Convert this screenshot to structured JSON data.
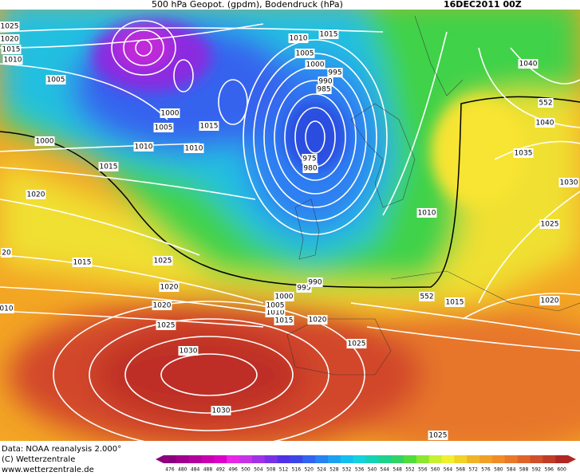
{
  "header": {
    "title": "500 hPa Geopot. (gpdm), Bodendruck (hPa)",
    "date": "16DEC2011 00Z"
  },
  "isobar_labels": [
    "1025",
    "1020",
    "1015",
    "1010",
    "1005",
    "1000",
    "1015",
    "1020",
    "20",
    "1015",
    "1025",
    "1020",
    "1020",
    "010",
    "1025",
    "1030",
    "1030",
    "1000",
    "1005",
    "1010",
    "1010",
    "1015",
    "1010",
    "1015",
    "1005",
    "1000",
    "995",
    "990",
    "985",
    "975",
    "980",
    "1010",
    "1040",
    "552",
    "1040",
    "1035",
    "1030",
    "1025",
    "1020",
    "1015",
    "552",
    "1025",
    "1020",
    "1015",
    "1010",
    "1005",
    "1000",
    "995",
    "990",
    "1025"
  ],
  "footer": {
    "source": "Data: NOAA reanalysis 2.000°",
    "copyright": "(C) Wetterzentrale",
    "url": "www.wetterzentrale.de"
  },
  "colorbar": {
    "labels": [
      "476",
      "480",
      "484",
      "488",
      "492",
      "496",
      "500",
      "504",
      "508",
      "512",
      "516",
      "520",
      "524",
      "528",
      "532",
      "536",
      "540",
      "544",
      "548",
      "552",
      "556",
      "560",
      "564",
      "568",
      "572",
      "576",
      "580",
      "584",
      "588",
      "592",
      "596",
      "600"
    ]
  }
}
